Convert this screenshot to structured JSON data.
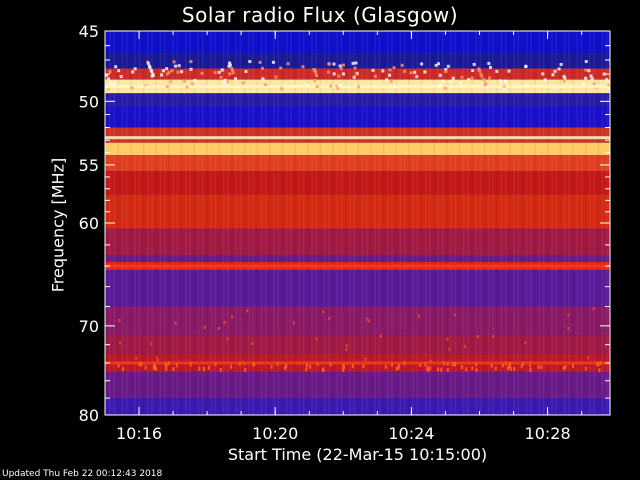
{
  "updated_text": "Updated Thu Feb 22 00:12:43 2018",
  "chart_data": {
    "type": "heatmap",
    "title": "Solar radio Flux (Glasgow)",
    "xlabel": "Start Time (22-Mar-15 10:15:00)",
    "ylabel": "Frequency [MHz]",
    "x_range": [
      "10:15:00",
      "10:29:50"
    ],
    "x_ticks": [
      "10:16",
      "10:20",
      "10:24",
      "10:28"
    ],
    "y_range": [
      45,
      80
    ],
    "y_ticks": [
      45,
      50,
      55,
      60,
      70,
      80
    ],
    "y_scale": "log-like (frequency increases downward)",
    "colors": {
      "low": "#1a1acc",
      "mid": "#cc1a1a",
      "high": "#ffdd55",
      "axis": "#ffffff"
    },
    "features": [
      {
        "freq_mhz": 48.9,
        "description": "bright horizontal band"
      },
      {
        "freq_mhz": 52.8,
        "description": "bright horizontal band"
      },
      {
        "freq_mhz": 64.0,
        "description": "red horizontal band"
      },
      {
        "freq_mhz": 74.0,
        "description": "red horizontal band with speckles"
      }
    ]
  }
}
